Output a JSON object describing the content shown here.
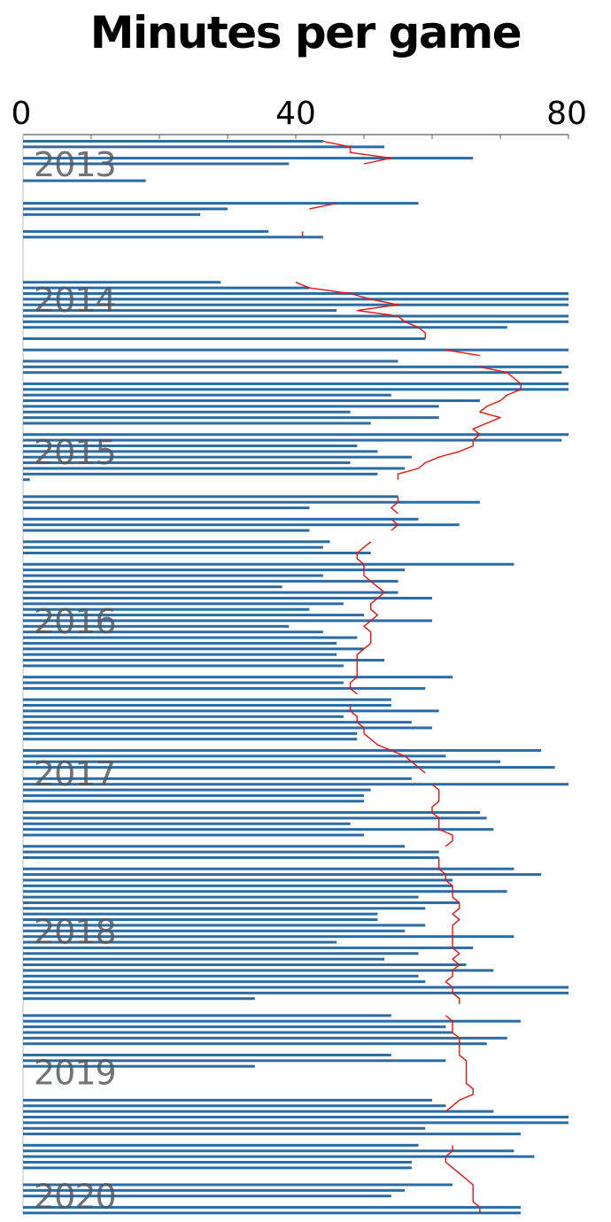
{
  "chart_data": {
    "type": "bar",
    "orientation": "horizontal",
    "title": "Minutes per game",
    "xlim": [
      0,
      80
    ],
    "x_ticks": [
      0,
      40,
      80
    ],
    "x_tick_labels": [
      "0",
      "40",
      "80"
    ],
    "year_labels": [
      {
        "label": "2013",
        "row": 4
      },
      {
        "label": "2014",
        "row": 28
      },
      {
        "label": "2015",
        "row": 55
      },
      {
        "label": "2016",
        "row": 85
      },
      {
        "label": "2017",
        "row": 112
      },
      {
        "label": "2018",
        "row": 140
      },
      {
        "label": "2019",
        "row": 165
      },
      {
        "label": "2020",
        "row": 187
      }
    ],
    "colors": {
      "bars": "#2a6ca3",
      "average_line": "#e8140f",
      "axis": "#777777"
    },
    "rows": 191,
    "minutes": [
      44,
      53,
      0,
      66,
      39,
      0,
      0,
      18,
      0,
      0,
      0,
      58,
      30,
      26,
      0,
      0,
      36,
      44,
      0,
      0,
      0,
      0,
      0,
      0,
      0,
      29,
      42,
      80,
      80,
      80,
      46,
      80,
      80,
      71,
      0,
      59,
      0,
      80,
      0,
      55,
      80,
      79,
      0,
      80,
      80,
      54,
      67,
      61,
      48,
      61,
      51,
      0,
      80,
      79,
      49,
      52,
      57,
      48,
      56,
      52,
      1,
      0,
      0,
      55,
      67,
      42,
      0,
      58,
      64,
      42,
      0,
      45,
      44,
      51,
      0,
      72,
      56,
      44,
      55,
      38,
      55,
      60,
      47,
      42,
      50,
      60,
      39,
      44,
      49,
      46,
      50,
      46,
      53,
      47,
      0,
      63,
      47,
      59,
      0,
      54,
      54,
      61,
      47,
      57,
      60,
      49,
      49,
      0,
      76,
      62,
      70,
      78,
      0,
      57,
      80,
      51,
      50,
      50,
      0,
      67,
      68,
      48,
      69,
      50,
      0,
      56,
      61,
      61,
      0,
      72,
      76,
      63,
      63,
      71,
      58,
      64,
      59,
      52,
      52,
      59,
      56,
      72,
      46,
      66,
      58,
      53,
      65,
      69,
      58,
      59,
      80,
      80,
      34,
      0,
      0,
      54,
      73,
      62,
      63,
      71,
      68,
      0,
      54,
      62,
      34,
      0,
      0,
      0,
      0,
      0,
      60,
      62,
      69,
      80,
      80,
      59,
      73,
      0,
      58,
      72,
      75,
      57,
      57,
      0,
      0,
      63,
      56,
      54,
      0,
      73,
      73
    ],
    "average_line_segments": [
      [
        [
          0,
          44
        ],
        [
          1,
          48
        ],
        [
          2,
          48
        ],
        [
          3,
          54
        ],
        [
          4,
          50
        ]
      ],
      [
        [
          11,
          46
        ],
        [
          12,
          42
        ]
      ],
      [
        [
          16,
          41
        ],
        [
          17,
          41
        ]
      ],
      [
        [
          25,
          40
        ],
        [
          26,
          42
        ],
        [
          27,
          48
        ],
        [
          28,
          51
        ],
        [
          29,
          55
        ],
        [
          30,
          49
        ],
        [
          31,
          55
        ],
        [
          32,
          56
        ],
        [
          33,
          58
        ],
        [
          34,
          59
        ],
        [
          35,
          59
        ]
      ],
      [
        [
          37,
          62
        ],
        [
          38,
          67
        ]
      ],
      [
        [
          40,
          67
        ],
        [
          41,
          71
        ],
        [
          42,
          72
        ],
        [
          43,
          73
        ],
        [
          44,
          73
        ],
        [
          45,
          71
        ],
        [
          46,
          70
        ],
        [
          47,
          68
        ],
        [
          48,
          67
        ],
        [
          49,
          70
        ],
        [
          50,
          68
        ],
        [
          51,
          66
        ],
        [
          52,
          67
        ],
        [
          53,
          66
        ],
        [
          54,
          66
        ],
        [
          55,
          64
        ],
        [
          56,
          61
        ],
        [
          57,
          59
        ],
        [
          58,
          58
        ],
        [
          59,
          55
        ],
        [
          60,
          55
        ]
      ],
      [
        [
          63,
          55
        ],
        [
          64,
          55
        ],
        [
          65,
          54
        ],
        [
          66,
          55
        ]
      ],
      [
        [
          67,
          54
        ],
        [
          68,
          55
        ],
        [
          69,
          54
        ]
      ],
      [
        [
          71,
          51
        ],
        [
          72,
          50
        ],
        [
          73,
          49
        ],
        [
          74,
          49
        ],
        [
          75,
          50
        ],
        [
          76,
          50
        ],
        [
          77,
          50
        ],
        [
          78,
          51
        ],
        [
          79,
          52
        ],
        [
          80,
          53
        ],
        [
          81,
          52
        ],
        [
          82,
          51
        ],
        [
          83,
          51
        ],
        [
          84,
          52
        ],
        [
          85,
          51
        ],
        [
          86,
          50
        ],
        [
          87,
          51
        ],
        [
          88,
          51
        ],
        [
          89,
          51
        ],
        [
          90,
          50
        ],
        [
          91,
          49
        ],
        [
          92,
          49
        ],
        [
          93,
          49
        ],
        [
          94,
          49
        ],
        [
          95,
          49
        ],
        [
          96,
          48
        ],
        [
          97,
          48
        ],
        [
          98,
          49
        ]
      ],
      [
        [
          100,
          48
        ],
        [
          101,
          48
        ],
        [
          102,
          49
        ],
        [
          103,
          49
        ],
        [
          104,
          50
        ],
        [
          105,
          50
        ],
        [
          106,
          51
        ],
        [
          107,
          52
        ],
        [
          108,
          54
        ],
        [
          109,
          56
        ],
        [
          110,
          57
        ],
        [
          111,
          58
        ],
        [
          112,
          59
        ]
      ],
      [
        [
          114,
          60
        ],
        [
          115,
          61
        ],
        [
          116,
          61
        ],
        [
          117,
          61
        ],
        [
          118,
          60
        ],
        [
          119,
          60
        ],
        [
          120,
          61
        ],
        [
          121,
          61
        ],
        [
          122,
          61
        ],
        [
          123,
          63
        ],
        [
          124,
          63
        ],
        [
          125,
          62
        ]
      ],
      [
        [
          127,
          61
        ],
        [
          128,
          61
        ],
        [
          129,
          61
        ],
        [
          130,
          62
        ],
        [
          131,
          62
        ],
        [
          132,
          63
        ],
        [
          133,
          63
        ],
        [
          134,
          63
        ],
        [
          135,
          64
        ],
        [
          136,
          64
        ],
        [
          137,
          63
        ],
        [
          138,
          64
        ],
        [
          139,
          63
        ],
        [
          140,
          63
        ],
        [
          141,
          63
        ],
        [
          142,
          63
        ],
        [
          143,
          63
        ],
        [
          144,
          64
        ],
        [
          145,
          63
        ],
        [
          146,
          64
        ],
        [
          147,
          63
        ],
        [
          148,
          63
        ],
        [
          149,
          62
        ],
        [
          150,
          63
        ],
        [
          151,
          63
        ],
        [
          152,
          64
        ],
        [
          153,
          64
        ]
      ],
      [
        [
          155,
          62
        ],
        [
          156,
          63
        ],
        [
          157,
          63
        ],
        [
          158,
          63
        ],
        [
          159,
          64
        ],
        [
          160,
          64
        ],
        [
          161,
          64
        ],
        [
          162,
          64
        ],
        [
          163,
          65
        ],
        [
          164,
          65
        ],
        [
          165,
          65
        ],
        [
          166,
          65
        ],
        [
          167,
          65
        ],
        [
          168,
          66
        ],
        [
          169,
          66
        ],
        [
          170,
          64
        ],
        [
          171,
          63
        ],
        [
          172,
          62
        ]
      ],
      [
        [
          178,
          63
        ],
        [
          179,
          63
        ],
        [
          180,
          62
        ],
        [
          181,
          62
        ],
        [
          182,
          63
        ],
        [
          183,
          64
        ],
        [
          184,
          65
        ],
        [
          185,
          66
        ],
        [
          186,
          66
        ],
        [
          187,
          66
        ],
        [
          188,
          66
        ],
        [
          189,
          67
        ],
        [
          190,
          67
        ]
      ]
    ]
  }
}
